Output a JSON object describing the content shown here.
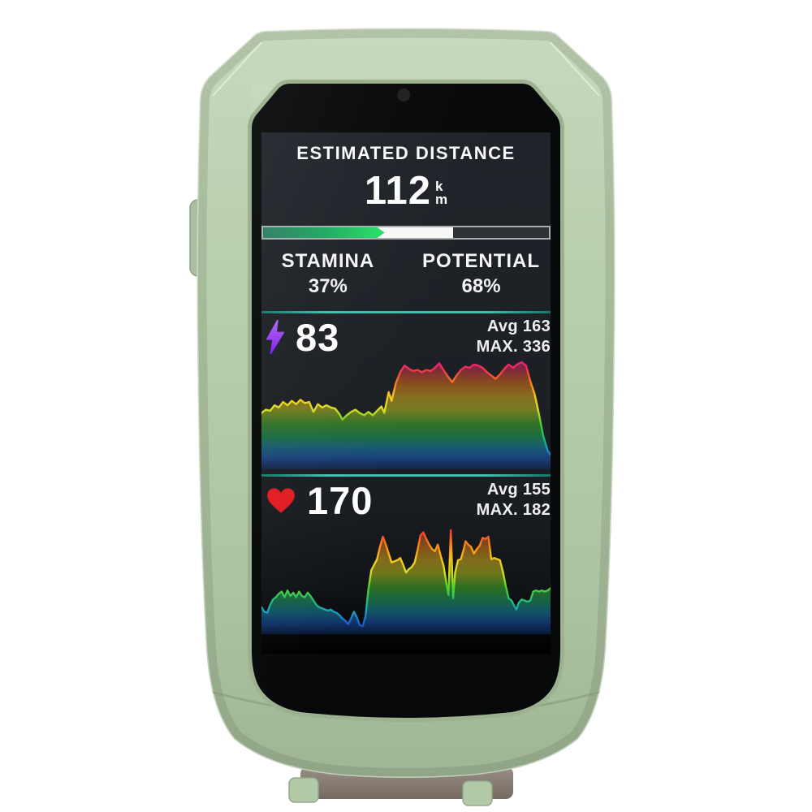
{
  "device": {
    "kind_label": "GPS bike computer in silicone case",
    "case_color": "#b7cdab",
    "accent_teal": "#2bb5a2"
  },
  "screen": {
    "title": "ESTIMATED DISTANCE",
    "distance": {
      "value": "112",
      "unit_top": "k",
      "unit_bottom": "m"
    },
    "stamina_bar": {
      "green_pct": 42.5,
      "white_pct": 66.5
    },
    "stamina": {
      "label": "STAMINA",
      "value": "37%"
    },
    "potential": {
      "label": "POTENTIAL",
      "value": "68%"
    },
    "power": {
      "value": "83",
      "avg": "Avg 163",
      "max": "MAX. 336"
    },
    "heart_rate": {
      "value": "170",
      "avg": "Avg 155",
      "max": "MAX. 182"
    }
  },
  "chart_data": [
    {
      "type": "area",
      "name": "power",
      "legend": "power intensity over ride time, color-coded by zone (blue low to magenta high)",
      "current": 83,
      "avg": 163,
      "max": 336,
      "x_axis": "ride time (percent of recording, no ticks shown)",
      "y_axis": "percent of chart height (no ticks shown)",
      "points": [
        [
          0,
          51
        ],
        [
          1.5,
          54
        ],
        [
          3,
          53
        ],
        [
          4.5,
          58
        ],
        [
          6,
          56
        ],
        [
          7.5,
          61
        ],
        [
          9,
          58
        ],
        [
          10.5,
          62
        ],
        [
          12,
          59
        ],
        [
          13.5,
          63
        ],
        [
          15,
          60
        ],
        [
          16.5,
          61
        ],
        [
          18,
          52
        ],
        [
          19.5,
          59
        ],
        [
          21,
          56
        ],
        [
          22.5,
          58
        ],
        [
          24,
          56
        ],
        [
          25.5,
          55
        ],
        [
          27,
          50
        ],
        [
          28,
          45
        ],
        [
          29.5,
          49
        ],
        [
          31,
          52
        ],
        [
          32.5,
          54
        ],
        [
          34,
          51
        ],
        [
          35.5,
          49
        ],
        [
          37,
          52
        ],
        [
          38.5,
          49
        ],
        [
          40,
          53
        ],
        [
          41.5,
          57
        ],
        [
          42.5,
          51
        ],
        [
          44,
          70
        ],
        [
          45,
          62
        ],
        [
          46.5,
          78
        ],
        [
          48,
          88
        ],
        [
          49.5,
          94
        ],
        [
          51,
          91
        ],
        [
          52.5,
          89
        ],
        [
          54,
          90
        ],
        [
          55.5,
          88
        ],
        [
          57,
          90
        ],
        [
          58.5,
          89
        ],
        [
          60,
          92
        ],
        [
          61.5,
          96
        ],
        [
          63,
          90
        ],
        [
          64.5,
          84
        ],
        [
          66,
          79
        ],
        [
          67.5,
          85
        ],
        [
          69,
          90
        ],
        [
          70.5,
          93
        ],
        [
          72,
          92
        ],
        [
          73.5,
          95
        ],
        [
          75,
          94
        ],
        [
          76.5,
          92
        ],
        [
          78,
          88
        ],
        [
          79.5,
          85
        ],
        [
          81,
          82
        ],
        [
          82.5,
          86
        ],
        [
          84,
          91
        ],
        [
          85.5,
          95
        ],
        [
          87,
          92
        ],
        [
          88.5,
          95
        ],
        [
          90,
          97
        ],
        [
          91.5,
          94
        ],
        [
          93,
          80
        ],
        [
          94.5,
          68
        ],
        [
          96,
          50
        ],
        [
          97.5,
          30
        ],
        [
          99,
          17
        ],
        [
          100,
          13
        ]
      ],
      "gradient": [
        [
          "0%",
          "#ec1390"
        ],
        [
          "10%",
          "#ee3550"
        ],
        [
          "22%",
          "#fb7d14"
        ],
        [
          "34%",
          "#f7c51c"
        ],
        [
          "46%",
          "#d8de20"
        ],
        [
          "58%",
          "#52cf2a"
        ],
        [
          "70%",
          "#1fbf63"
        ],
        [
          "80%",
          "#189ec2"
        ],
        [
          "90%",
          "#1a64d8"
        ],
        [
          "100%",
          "#0e2d66"
        ]
      ]
    },
    {
      "type": "area",
      "name": "heart_rate",
      "legend": "heart rate over ride time, color-coded by zone (blue low to red high)",
      "current": 170,
      "avg": 155,
      "max": 182,
      "x_axis": "ride time (percent of recording, no ticks shown)",
      "y_axis": "percent of chart height (no ticks shown)",
      "points": [
        [
          0,
          24
        ],
        [
          1,
          20
        ],
        [
          2,
          19
        ],
        [
          3,
          26
        ],
        [
          4,
          31
        ],
        [
          5,
          33
        ],
        [
          6,
          36
        ],
        [
          7,
          38
        ],
        [
          8,
          33
        ],
        [
          9,
          39
        ],
        [
          10,
          34
        ],
        [
          11,
          37
        ],
        [
          12,
          33
        ],
        [
          13,
          38
        ],
        [
          14,
          34
        ],
        [
          15,
          33
        ],
        [
          16,
          37
        ],
        [
          17,
          34
        ],
        [
          18,
          30
        ],
        [
          19,
          26
        ],
        [
          20,
          24
        ],
        [
          21,
          23
        ],
        [
          22,
          22
        ],
        [
          23,
          21
        ],
        [
          24,
          22
        ],
        [
          25,
          20
        ],
        [
          26,
          19
        ],
        [
          27,
          17
        ],
        [
          28,
          14
        ],
        [
          29,
          12
        ],
        [
          30,
          9
        ],
        [
          31,
          14
        ],
        [
          32,
          20
        ],
        [
          33,
          15
        ],
        [
          34,
          8
        ],
        [
          35,
          7
        ],
        [
          36,
          16
        ],
        [
          37,
          40
        ],
        [
          38,
          57
        ],
        [
          39,
          62
        ],
        [
          40,
          67
        ],
        [
          41,
          78
        ],
        [
          42,
          87
        ],
        [
          43,
          80
        ],
        [
          44,
          72
        ],
        [
          45,
          64
        ],
        [
          46,
          65
        ],
        [
          47,
          66
        ],
        [
          48,
          68
        ],
        [
          49,
          62
        ],
        [
          50,
          55
        ],
        [
          51,
          58
        ],
        [
          52,
          60
        ],
        [
          53,
          64
        ],
        [
          54,
          75
        ],
        [
          55,
          88
        ],
        [
          56,
          91
        ],
        [
          57,
          85
        ],
        [
          58,
          80
        ],
        [
          59,
          76
        ],
        [
          60,
          74
        ],
        [
          61,
          80
        ],
        [
          62,
          70
        ],
        [
          63,
          61
        ],
        [
          64,
          45
        ],
        [
          64.7,
          35
        ],
        [
          65.5,
          93
        ],
        [
          66.3,
          32
        ],
        [
          67,
          55
        ],
        [
          68,
          66
        ],
        [
          69,
          67
        ],
        [
          70,
          76
        ],
        [
          70.6,
          83
        ],
        [
          71.5,
          80
        ],
        [
          72.5,
          78
        ],
        [
          73.5,
          72
        ],
        [
          74.5,
          76
        ],
        [
          75.5,
          79
        ],
        [
          76.5,
          86
        ],
        [
          77.5,
          85
        ],
        [
          78.5,
          87
        ],
        [
          79.5,
          67
        ],
        [
          80.5,
          68
        ],
        [
          81.5,
          67
        ],
        [
          82.5,
          66
        ],
        [
          83.5,
          56
        ],
        [
          84.5,
          43
        ],
        [
          85.5,
          32
        ],
        [
          86.5,
          30
        ],
        [
          87.5,
          25
        ],
        [
          88.2,
          22
        ],
        [
          89,
          28
        ],
        [
          90,
          31
        ],
        [
          91,
          30
        ],
        [
          92,
          29
        ],
        [
          93,
          30
        ],
        [
          94,
          38
        ],
        [
          95,
          39
        ],
        [
          96,
          38
        ],
        [
          97,
          39
        ],
        [
          98,
          38
        ],
        [
          99,
          39
        ],
        [
          100,
          41
        ]
      ],
      "gradient": [
        [
          "0%",
          "#ea1745"
        ],
        [
          "10%",
          "#f14a2e"
        ],
        [
          "22%",
          "#fb8c12"
        ],
        [
          "34%",
          "#f6c81d"
        ],
        [
          "46%",
          "#cfe01e"
        ],
        [
          "58%",
          "#4fd12b"
        ],
        [
          "70%",
          "#22bd7a"
        ],
        [
          "80%",
          "#1b9fc0"
        ],
        [
          "90%",
          "#1a62d4"
        ],
        [
          "100%",
          "#0e2d66"
        ]
      ]
    }
  ]
}
